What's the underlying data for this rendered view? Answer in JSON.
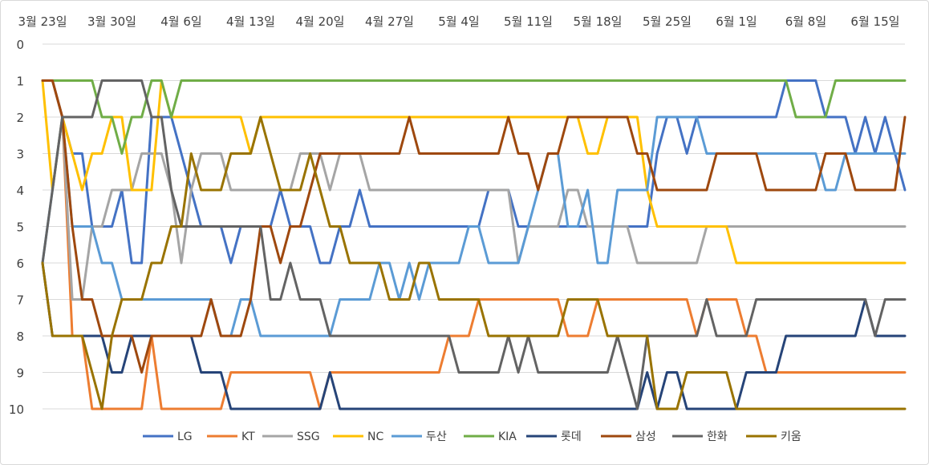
{
  "chart_data": {
    "type": "line",
    "title": "",
    "xlabel": "",
    "ylabel": "",
    "x_axis_position": "top",
    "y_axis_reversed": true,
    "ylim": [
      0,
      10
    ],
    "y_ticks": [
      "0",
      "1",
      "2",
      "3",
      "4",
      "5",
      "6",
      "7",
      "8",
      "9",
      "10"
    ],
    "x_tick_labels": [
      "3월 23일",
      "3월 30일",
      "4월 6일",
      "4월 13일",
      "4월 20일",
      "4월 27일",
      "5월 4일",
      "5월 11일",
      "5월 18일",
      "5월 25일",
      "6월 1일",
      "6월 8일",
      "6월 15일"
    ],
    "gridlines": true,
    "legend_position": "bottom",
    "series": [
      {
        "name": "LG",
        "color": "#4472C4",
        "values": [
          1,
          1,
          2,
          3,
          3,
          5,
          5,
          5,
          4,
          6,
          6,
          2,
          2,
          2,
          3,
          4,
          5,
          5,
          5,
          6,
          5,
          5,
          5,
          5,
          4,
          5,
          5,
          5,
          6,
          6,
          5,
          5,
          4,
          5,
          5,
          5,
          5,
          5,
          5,
          5,
          5,
          5,
          5,
          5,
          5,
          4,
          4,
          4,
          5,
          5,
          5,
          5,
          5,
          5,
          5,
          5,
          5,
          5,
          5,
          5,
          5,
          5,
          3,
          2,
          2,
          3,
          2,
          2,
          2,
          2,
          2,
          2,
          2,
          2,
          2,
          1,
          1,
          1,
          1,
          2,
          2,
          2,
          3,
          2,
          3,
          2,
          3,
          4
        ]
      },
      {
        "name": "KT",
        "color": "#ED7D31",
        "values": [
          1,
          1,
          2,
          8,
          8,
          10,
          10,
          10,
          10,
          10,
          10,
          8,
          10,
          10,
          10,
          10,
          10,
          10,
          10,
          9,
          9,
          9,
          9,
          9,
          9,
          9,
          9,
          9,
          10,
          9,
          9,
          9,
          9,
          9,
          9,
          9,
          9,
          9,
          9,
          9,
          9,
          8,
          8,
          8,
          7,
          7,
          7,
          7,
          7,
          7,
          7,
          7,
          7,
          8,
          8,
          8,
          7,
          7,
          7,
          7,
          7,
          7,
          7,
          7,
          7,
          7,
          8,
          7,
          7,
          7,
          7,
          8,
          8,
          9,
          9,
          9,
          9,
          9,
          9,
          9,
          9,
          9,
          9,
          9,
          9,
          9,
          9,
          9
        ]
      },
      {
        "name": "SSG",
        "color": "#A5A5A5",
        "values": [
          1,
          1,
          2,
          7,
          7,
          5,
          5,
          4,
          4,
          4,
          3,
          3,
          3,
          4,
          6,
          4,
          3,
          3,
          3,
          4,
          4,
          4,
          4,
          4,
          4,
          4,
          3,
          3,
          3,
          4,
          3,
          3,
          3,
          4,
          4,
          4,
          4,
          4,
          4,
          4,
          4,
          4,
          4,
          4,
          4,
          4,
          4,
          4,
          6,
          5,
          5,
          5,
          5,
          4,
          4,
          5,
          5,
          5,
          5,
          5,
          6,
          6,
          6,
          6,
          6,
          6,
          6,
          5,
          5,
          5,
          5,
          5,
          5,
          5,
          5,
          5,
          5,
          5,
          5,
          5,
          5,
          5,
          5,
          5,
          5,
          5,
          5,
          5
        ]
      },
      {
        "name": "NC",
        "color": "#FFC000",
        "values": [
          1,
          4,
          2,
          3,
          4,
          3,
          3,
          2,
          2,
          4,
          4,
          4,
          1,
          2,
          2,
          2,
          2,
          2,
          2,
          2,
          2,
          3,
          2,
          2,
          2,
          2,
          2,
          2,
          2,
          2,
          2,
          2,
          2,
          2,
          2,
          2,
          2,
          2,
          2,
          2,
          2,
          2,
          2,
          2,
          2,
          2,
          2,
          2,
          2,
          2,
          2,
          2,
          2,
          2,
          2,
          3,
          3,
          2,
          2,
          2,
          2,
          4,
          5,
          5,
          5,
          5,
          5,
          5,
          5,
          5,
          6,
          6,
          6,
          6,
          6,
          6,
          6,
          6,
          6,
          6,
          6,
          6,
          6,
          6,
          6,
          6,
          6,
          6
        ]
      },
      {
        "name": "두산",
        "color": "#5B9BD5",
        "values": [
          6,
          4,
          2,
          5,
          5,
          5,
          6,
          6,
          7,
          7,
          7,
          7,
          7,
          7,
          7,
          7,
          7,
          7,
          8,
          8,
          7,
          7,
          8,
          8,
          8,
          8,
          8,
          8,
          8,
          8,
          7,
          7,
          7,
          7,
          6,
          6,
          7,
          6,
          7,
          6,
          6,
          6,
          6,
          5,
          5,
          6,
          6,
          6,
          6,
          5,
          4,
          3,
          3,
          5,
          5,
          4,
          6,
          6,
          4,
          4,
          4,
          4,
          2,
          2,
          2,
          2,
          2,
          3,
          3,
          3,
          3,
          3,
          3,
          3,
          3,
          3,
          3,
          3,
          3,
          4,
          4,
          3,
          3,
          3,
          3,
          3,
          3,
          3
        ]
      },
      {
        "name": "KIA",
        "color": "#70AD47",
        "values": [
          1,
          1,
          1,
          1,
          1,
          1,
          2,
          2,
          3,
          2,
          2,
          1,
          1,
          2,
          1,
          1,
          1,
          1,
          1,
          1,
          1,
          1,
          1,
          1,
          1,
          1,
          1,
          1,
          1,
          1,
          1,
          1,
          1,
          1,
          1,
          1,
          1,
          1,
          1,
          1,
          1,
          1,
          1,
          1,
          1,
          1,
          1,
          1,
          1,
          1,
          1,
          1,
          1,
          1,
          1,
          1,
          1,
          1,
          1,
          1,
          1,
          1,
          1,
          1,
          1,
          1,
          1,
          1,
          1,
          1,
          1,
          1,
          1,
          1,
          1,
          1,
          2,
          2,
          2,
          2,
          1,
          1,
          1,
          1,
          1,
          1,
          1,
          1
        ]
      },
      {
        "name": "롯데",
        "color": "#264478",
        "values": [
          6,
          8,
          8,
          8,
          8,
          8,
          8,
          9,
          9,
          8,
          8,
          8,
          8,
          8,
          8,
          8,
          9,
          9,
          9,
          10,
          10,
          10,
          10,
          10,
          10,
          10,
          10,
          10,
          10,
          9,
          10,
          10,
          10,
          10,
          10,
          10,
          10,
          10,
          10,
          10,
          10,
          10,
          10,
          10,
          10,
          10,
          10,
          10,
          10,
          10,
          10,
          10,
          10,
          10,
          10,
          10,
          10,
          10,
          10,
          10,
          10,
          9,
          10,
          9,
          9,
          10,
          10,
          10,
          10,
          10,
          10,
          9,
          9,
          9,
          9,
          8,
          8,
          8,
          8,
          8,
          8,
          8,
          8,
          7,
          8,
          8,
          8,
          8
        ]
      },
      {
        "name": "삼성",
        "color": "#9E480E",
        "values": [
          1,
          1,
          2,
          5,
          7,
          7,
          8,
          8,
          8,
          8,
          9,
          8,
          8,
          8,
          8,
          8,
          8,
          7,
          8,
          8,
          8,
          7,
          5,
          5,
          6,
          5,
          5,
          4,
          3,
          3,
          3,
          3,
          3,
          3,
          3,
          3,
          3,
          2,
          3,
          3,
          3,
          3,
          3,
          3,
          3,
          3,
          3,
          2,
          3,
          3,
          4,
          3,
          3,
          2,
          2,
          2,
          2,
          2,
          2,
          2,
          3,
          3,
          4,
          4,
          4,
          4,
          4,
          4,
          3,
          3,
          3,
          3,
          3,
          4,
          4,
          4,
          4,
          4,
          4,
          3,
          3,
          3,
          4,
          4,
          4,
          4,
          4,
          2
        ]
      },
      {
        "name": "한화",
        "color": "#636363",
        "values": [
          6,
          4,
          2,
          2,
          2,
          2,
          1,
          1,
          1,
          1,
          1,
          2,
          2,
          4,
          5,
          5,
          5,
          5,
          5,
          5,
          5,
          5,
          5,
          7,
          7,
          6,
          7,
          7,
          7,
          8,
          8,
          8,
          8,
          8,
          8,
          8,
          8,
          8,
          8,
          8,
          8,
          8,
          9,
          9,
          9,
          9,
          9,
          8,
          9,
          8,
          9,
          9,
          9,
          9,
          9,
          9,
          9,
          9,
          8,
          9,
          10,
          8,
          8,
          8,
          8,
          8,
          8,
          7,
          8,
          8,
          8,
          8,
          7,
          7,
          7,
          7,
          7,
          7,
          7,
          7,
          7,
          7,
          7,
          7,
          8,
          7,
          7,
          7
        ]
      },
      {
        "name": "키움",
        "color": "#997300",
        "values": [
          6,
          8,
          8,
          8,
          8,
          9,
          10,
          8,
          7,
          7,
          7,
          6,
          6,
          5,
          5,
          3,
          4,
          4,
          4,
          3,
          3,
          3,
          2,
          3,
          4,
          4,
          4,
          3,
          4,
          5,
          5,
          6,
          6,
          6,
          6,
          7,
          7,
          7,
          6,
          6,
          7,
          7,
          7,
          7,
          7,
          8,
          8,
          8,
          8,
          8,
          8,
          8,
          8,
          7,
          7,
          7,
          7,
          8,
          8,
          8,
          8,
          8,
          10,
          10,
          10,
          9,
          9,
          9,
          9,
          9,
          10,
          10,
          10,
          10,
          10,
          10,
          10,
          10,
          10,
          10,
          10,
          10,
          10,
          10,
          10,
          10,
          10,
          10
        ]
      }
    ]
  }
}
